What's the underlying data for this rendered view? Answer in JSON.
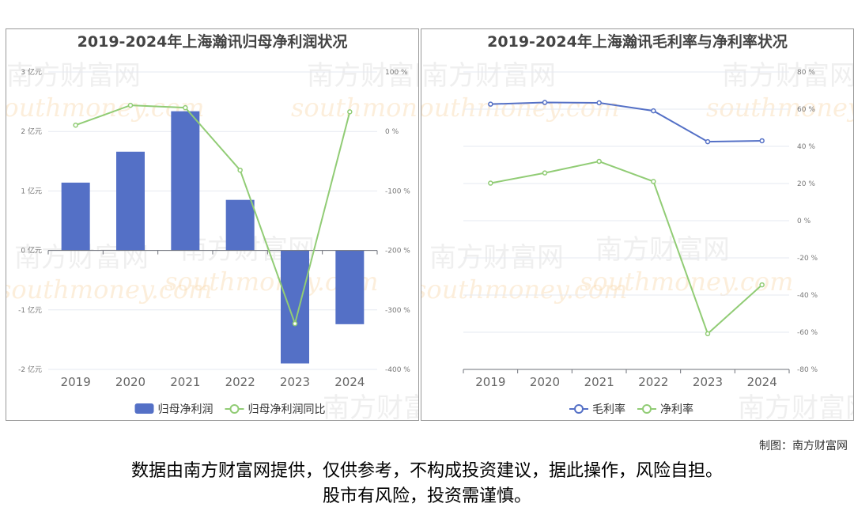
{
  "chart_data": [
    {
      "type": "bar+line",
      "title": "2019-2024年上海瀚讯归母净利润状况",
      "categories": [
        "2019",
        "2020",
        "2021",
        "2022",
        "2023",
        "2024"
      ],
      "y_left": {
        "ylim": [
          -2,
          3
        ],
        "ticks": [
          -2,
          -1,
          0,
          1,
          2,
          3
        ],
        "unit": "亿元"
      },
      "y_right": {
        "ylim": [
          -400,
          100
        ],
        "ticks": [
          -400,
          -300,
          -200,
          -100,
          0,
          100
        ],
        "unit": "%"
      },
      "series": [
        {
          "name": "归母净利润",
          "type": "bar",
          "axis": "left",
          "color": "#5470c6",
          "values": [
            1.14,
            1.66,
            2.34,
            0.85,
            -1.9,
            -1.24
          ]
        },
        {
          "name": "归母净利润同比",
          "type": "line",
          "axis": "right",
          "color": "#91cc75",
          "values": [
            10.6,
            44,
            40,
            -65,
            -323,
            33
          ]
        }
      ],
      "legend": "bottom",
      "grid": true
    },
    {
      "type": "line",
      "title": "2019-2024年上海瀚讯毛利率与净利率状况",
      "categories": [
        "2019",
        "2020",
        "2021",
        "2022",
        "2023",
        "2024"
      ],
      "y_right": {
        "ylim": [
          -80,
          80
        ],
        "ticks": [
          -80,
          -60,
          -40,
          -20,
          0,
          20,
          40,
          60,
          80
        ],
        "unit": "%"
      },
      "series": [
        {
          "name": "毛利率",
          "type": "line",
          "color": "#5470c6",
          "values": [
            62.7,
            63.6,
            63.4,
            59.1,
            42.5,
            43
          ]
        },
        {
          "name": "净利率",
          "type": "line",
          "color": "#91cc75",
          "values": [
            20.2,
            25.7,
            31.9,
            21.1,
            -60.8,
            -34.5
          ]
        }
      ],
      "legend": "bottom",
      "grid": true
    }
  ],
  "watermark": {
    "cn": "南方财富网",
    "en": "southmoney.com"
  },
  "credit": "制图：南方财富网",
  "disclaimer": [
    "数据由南方财富网提供，仅供参考，不构成投资建议，据此操作，风险自担。",
    "股市有风险，投资需谨慎。"
  ]
}
